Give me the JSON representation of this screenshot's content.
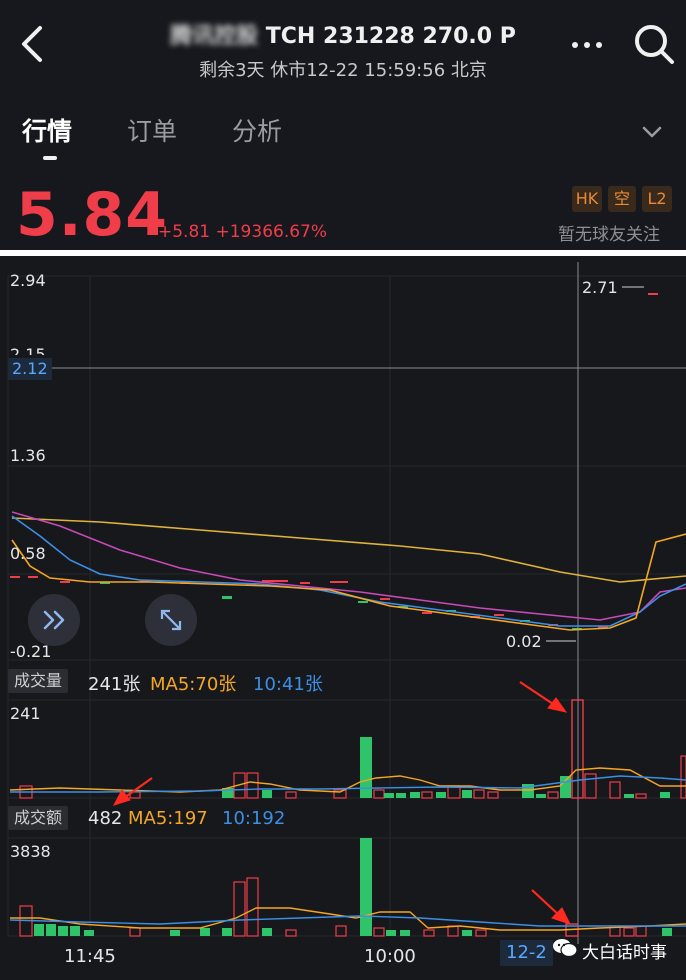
{
  "header": {
    "title_blurred": "腾讯控股",
    "title_rest": " TCH 231228 270.0 P",
    "subtitle": "剩余3天 休市12-22 15:59:56 北京"
  },
  "tabs": [
    {
      "label": "行情",
      "active": true
    },
    {
      "label": "订单",
      "active": false
    },
    {
      "label": "分析",
      "active": false
    }
  ],
  "quote": {
    "price": "5.84",
    "change": "+5.81 +19366.67%",
    "badges": [
      "HK",
      "空",
      "L2"
    ],
    "follow_text": "暂无球友关注"
  },
  "price_chart": {
    "y_labels": [
      "2.94",
      "2.15",
      "1.36",
      "0.58",
      "-0.21"
    ],
    "crosshair_value": "2.12",
    "high_label": "2.71",
    "low_label": "0.02"
  },
  "volume": {
    "section_label": "成交量",
    "current": "241张",
    "ma5": "MA5:70张",
    "ma10": "10:41张",
    "y_max": "241"
  },
  "turnover": {
    "section_label": "成交额",
    "current": "482",
    "ma5": "MA5:197",
    "ma10": "10:192",
    "y_max": "3838"
  },
  "x_axis": {
    "labels": [
      "11:45",
      "10:00"
    ],
    "crosshair_date": "12-2"
  },
  "watermark": "大白话时事",
  "colors": {
    "up": "#ef3d4a",
    "down": "#2fc46a",
    "ma5": "#f5a623",
    "ma10": "#3b8fe5",
    "ma20": "#c84ab8",
    "ma30": "#e0b33a",
    "badge": "#e8893a",
    "crosshair_label": "#3b8fe5"
  }
}
